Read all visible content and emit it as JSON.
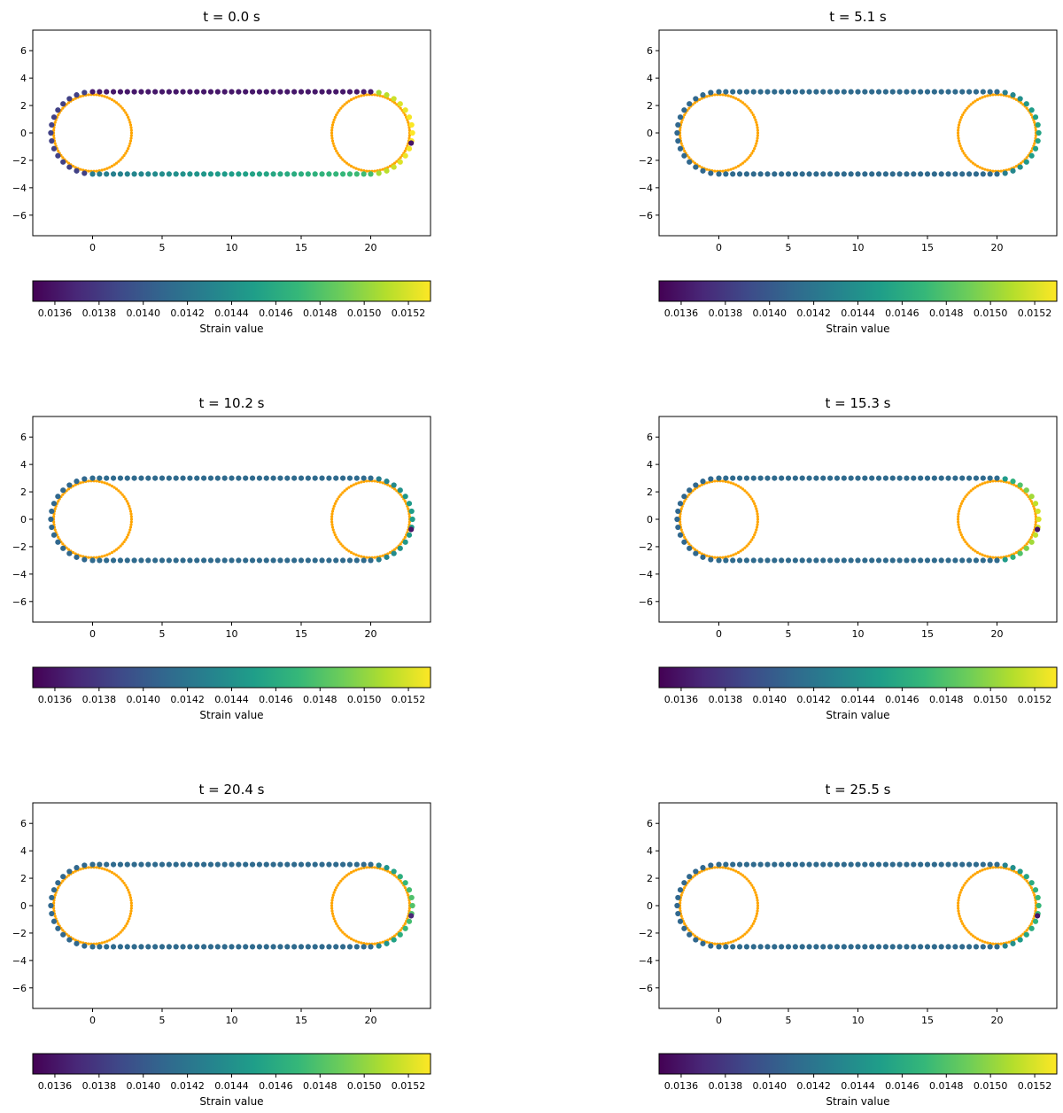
{
  "figure": {
    "background": "#ffffff"
  },
  "chart_data": [
    {
      "type": "scatter",
      "title": "t = 0.0  s",
      "xticks": [
        0,
        5,
        10,
        15,
        20
      ],
      "yticks": [
        6,
        4,
        2,
        0,
        -2,
        -4,
        -6
      ],
      "xlim": [
        -4.3,
        24.3
      ],
      "ylim": [
        -7.5,
        7.5
      ],
      "pulleys": [
        {
          "cx": 0,
          "cy": 0,
          "r": 2.8
        },
        {
          "cx": 20,
          "cy": 0,
          "r": 2.8
        }
      ],
      "pulley_color": "#ffa500",
      "belt": {
        "radius": 3.0,
        "length": 20,
        "top_strain": 0.01362,
        "bottom_strain": [
          0.01425,
          0.01475
        ],
        "left_arc_strain": 0.01385,
        "right_arc_strain": [
          0.015,
          0.0153
        ],
        "hotspot_strain": 0.0136
      },
      "colorbar": {
        "min": 0.0135,
        "max": 0.0153,
        "ticks": [
          "0.0136",
          "0.0138",
          "0.0140",
          "0.0142",
          "0.0144",
          "0.0146",
          "0.0148",
          "0.0150",
          "0.0152"
        ],
        "label": "Strain value",
        "colormap": "viridis"
      }
    },
    {
      "type": "scatter",
      "title": "t = 5.1  s",
      "xticks": [
        0,
        5,
        10,
        15,
        20
      ],
      "yticks": [
        6,
        4,
        2,
        0,
        -2,
        -4,
        -6
      ],
      "xlim": [
        -4.3,
        24.3
      ],
      "ylim": [
        -7.5,
        7.5
      ],
      "pulleys": [
        {
          "cx": 0,
          "cy": 0,
          "r": 2.8
        },
        {
          "cx": 20,
          "cy": 0,
          "r": 2.8
        }
      ],
      "pulley_color": "#ffa500",
      "belt": {
        "radius": 3.0,
        "length": 20,
        "top_strain": 0.01412,
        "bottom_strain": [
          0.01412,
          0.01412
        ],
        "left_arc_strain": 0.0141,
        "right_arc_strain": [
          0.0142,
          0.01455
        ],
        "hotspot_strain": null
      },
      "colorbar": {
        "min": 0.0135,
        "max": 0.0153,
        "ticks": [
          "0.0136",
          "0.0138",
          "0.0140",
          "0.0142",
          "0.0144",
          "0.0146",
          "0.0148",
          "0.0150",
          "0.0152"
        ],
        "label": "Strain value",
        "colormap": "viridis"
      }
    },
    {
      "type": "scatter",
      "title": "t = 10.2  s",
      "xticks": [
        0,
        5,
        10,
        15,
        20
      ],
      "yticks": [
        6,
        4,
        2,
        0,
        -2,
        -4,
        -6
      ],
      "xlim": [
        -4.3,
        24.3
      ],
      "ylim": [
        -7.5,
        7.5
      ],
      "pulleys": [
        {
          "cx": 0,
          "cy": 0,
          "r": 2.8
        },
        {
          "cx": 20,
          "cy": 0,
          "r": 2.8
        }
      ],
      "pulley_color": "#ffa500",
      "belt": {
        "radius": 3.0,
        "length": 20,
        "top_strain": 0.01412,
        "bottom_strain": [
          0.01412,
          0.01412
        ],
        "left_arc_strain": 0.0141,
        "right_arc_strain": [
          0.0142,
          0.0145
        ],
        "hotspot_strain": 0.0136
      },
      "colorbar": {
        "min": 0.0135,
        "max": 0.0153,
        "ticks": [
          "0.0136",
          "0.0138",
          "0.0140",
          "0.0142",
          "0.0144",
          "0.0146",
          "0.0148",
          "0.0150",
          "0.0152"
        ],
        "label": "Strain value",
        "colormap": "viridis"
      }
    },
    {
      "type": "scatter",
      "title": "t = 15.3  s",
      "xticks": [
        0,
        5,
        10,
        15,
        20
      ],
      "yticks": [
        6,
        4,
        2,
        0,
        -2,
        -4,
        -6
      ],
      "xlim": [
        -4.3,
        24.3
      ],
      "ylim": [
        -7.5,
        7.5
      ],
      "pulleys": [
        {
          "cx": 0,
          "cy": 0,
          "r": 2.8
        },
        {
          "cx": 20,
          "cy": 0,
          "r": 2.8
        }
      ],
      "pulley_color": "#ffa500",
      "belt": {
        "radius": 3.0,
        "length": 20,
        "top_strain": 0.01412,
        "bottom_strain": [
          0.01412,
          0.01412
        ],
        "left_arc_strain": 0.0141,
        "right_arc_strain": [
          0.0143,
          0.0152
        ],
        "hotspot_strain": 0.0136
      },
      "colorbar": {
        "min": 0.0135,
        "max": 0.0153,
        "ticks": [
          "0.0136",
          "0.0138",
          "0.0140",
          "0.0142",
          "0.0144",
          "0.0146",
          "0.0148",
          "0.0150",
          "0.0152"
        ],
        "label": "Strain value",
        "colormap": "viridis"
      }
    },
    {
      "type": "scatter",
      "title": "t = 20.4  s",
      "xticks": [
        0,
        5,
        10,
        15,
        20
      ],
      "yticks": [
        6,
        4,
        2,
        0,
        -2,
        -4,
        -6
      ],
      "xlim": [
        -4.3,
        24.3
      ],
      "ylim": [
        -7.5,
        7.5
      ],
      "pulleys": [
        {
          "cx": 0,
          "cy": 0,
          "r": 2.8
        },
        {
          "cx": 20,
          "cy": 0,
          "r": 2.8
        }
      ],
      "pulley_color": "#ffa500",
      "belt": {
        "radius": 3.0,
        "length": 20,
        "top_strain": 0.01412,
        "bottom_strain": [
          0.01412,
          0.01412
        ],
        "left_arc_strain": 0.0141,
        "right_arc_strain": [
          0.0142,
          0.0148
        ],
        "hotspot_strain": 0.0137
      },
      "colorbar": {
        "min": 0.0135,
        "max": 0.0153,
        "ticks": [
          "0.0136",
          "0.0138",
          "0.0140",
          "0.0142",
          "0.0144",
          "0.0146",
          "0.0148",
          "0.0150",
          "0.0152"
        ],
        "label": "Strain value",
        "colormap": "viridis"
      }
    },
    {
      "type": "scatter",
      "title": "t = 25.5  s",
      "xticks": [
        0,
        5,
        10,
        15,
        20
      ],
      "yticks": [
        6,
        4,
        2,
        0,
        -2,
        -4,
        -6
      ],
      "xlim": [
        -4.3,
        24.3
      ],
      "ylim": [
        -7.5,
        7.5
      ],
      "pulleys": [
        {
          "cx": 0,
          "cy": 0,
          "r": 2.8
        },
        {
          "cx": 20,
          "cy": 0,
          "r": 2.8
        }
      ],
      "pulley_color": "#ffa500",
      "belt": {
        "radius": 3.0,
        "length": 20,
        "top_strain": 0.01412,
        "bottom_strain": [
          0.01412,
          0.01412
        ],
        "left_arc_strain": 0.0141,
        "right_arc_strain": [
          0.0142,
          0.0147
        ],
        "hotspot_strain": 0.0136
      },
      "colorbar": {
        "min": 0.0135,
        "max": 0.0153,
        "ticks": [
          "0.0136",
          "0.0138",
          "0.0140",
          "0.0142",
          "0.0144",
          "0.0146",
          "0.0148",
          "0.0150",
          "0.0152"
        ],
        "label": "Strain value",
        "colormap": "viridis"
      }
    }
  ]
}
